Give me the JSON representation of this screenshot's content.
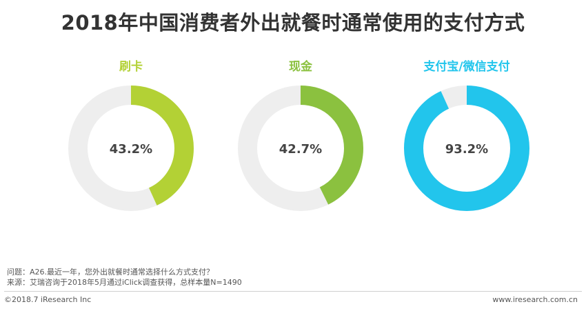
{
  "title": "2018年中国消费者外出就餐时通常使用的支付方式",
  "chart_data": {
    "type": "pie",
    "variant": "donut",
    "charts": [
      {
        "label": "刷卡",
        "value": 43.2,
        "value_label": "43.2%",
        "color": "#b3d135"
      },
      {
        "label": "现金",
        "value": 42.7,
        "value_label": "42.7%",
        "color": "#8bc13f"
      },
      {
        "label": "支付宝/微信支付",
        "value": 93.2,
        "value_label": "93.2%",
        "color": "#22c5ec"
      }
    ],
    "track_color": "#eeeeee"
  },
  "notes": {
    "question": "问题：A26.最近一年，您外出就餐时通常选择什么方式支付？",
    "source": "来源：艾瑞咨询于2018年5月通过iClick调查获得，总样本量N=1490"
  },
  "footer": {
    "copyright": "©2018.7 iResearch Inc",
    "website": "www.iresearch.com.cn"
  }
}
